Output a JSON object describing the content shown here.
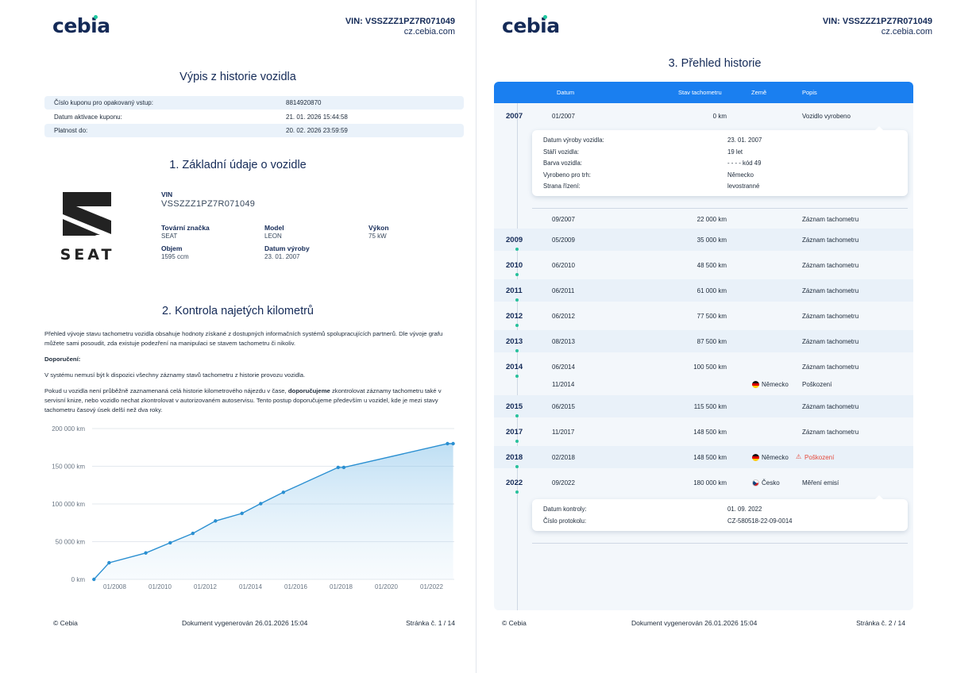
{
  "brand": "cebia",
  "header": {
    "vin_label": "VIN: VSSZZZ1PZ7R071049",
    "site": "cz.cebia.com"
  },
  "page1": {
    "title": "Výpis z historie vozidla",
    "coupon": [
      {
        "label": "Číslo kuponu pro opakovaný vstup:",
        "value": "8814920870"
      },
      {
        "label": "Datum aktivace kuponu:",
        "value": "21. 01. 2026 15:44:58"
      },
      {
        "label": "Platnost do:",
        "value": "20. 02. 2026 23:59:59"
      }
    ],
    "section1_title": "1. Základní údaje o vozidle",
    "vehicle": {
      "logo_text": "SEAT",
      "vin_label": "VIN",
      "vin": "VSSZZZ1PZ7R071049",
      "make_label": "Tovární značka",
      "make": "SEAT",
      "model_label": "Model",
      "model": "LEON",
      "power_label": "Výkon",
      "power": "75 kW",
      "displacement_label": "Objem",
      "displacement": "1595 ccm",
      "production_label": "Datum výroby",
      "production": "23. 01. 2007"
    },
    "section2_title": "2. Kontrola najetých kilometrů",
    "para1": "Přehled vývoje stavu tachometru vozidla obsahuje hodnoty získané z dostupných informačních systémů spolupracujících partnerů. Dle vývoje grafu můžete sami posoudit, zda existuje podezření na manipulaci se stavem tachometru či nikoliv.",
    "recommend_label": "Doporučení:",
    "para2": "V systému nemusí být k dispozici všechny záznamy stavů tachometru z historie provozu vozidla.",
    "para3_a": "Pokud u vozidla není průběžně zaznamenaná celá historie kilometrového nájezdu v čase, ",
    "para3_b": "doporučujeme",
    "para3_c": " zkontrolovat záznamy tachometru také v servisní knize, nebo vozidlo nechat zkontrolovat v autorizovaném autoservisu. Tento postup doporučujeme především u vozidel, kde je mezi stavy tachometru časový úsek delší než dva roky.",
    "footer_left": "© Cebia",
    "footer_mid": "Dokument vygenerován 26.01.2026 15:04",
    "footer_right": "Stránka č. 1 / 14"
  },
  "chart_data": {
    "type": "area",
    "title": "",
    "xlabel": "",
    "ylabel": "",
    "y_ticks": [
      "0 km",
      "50 000 km",
      "100 000 km",
      "150 000 km",
      "200 000 km"
    ],
    "x_ticks": [
      "01/2008",
      "01/2010",
      "01/2012",
      "01/2014",
      "01/2016",
      "01/2018",
      "01/2020",
      "01/2022"
    ],
    "x_tick_years": [
      2008,
      2010,
      2012,
      2014,
      2016,
      2018,
      2020,
      2022
    ],
    "ylim": [
      0,
      200000
    ],
    "xlim": [
      2007.0,
      2023.0
    ],
    "grid": true,
    "color": "#2a8fd1",
    "points": [
      {
        "x": 2007.08,
        "y": 0
      },
      {
        "x": 2007.75,
        "y": 22000
      },
      {
        "x": 2009.37,
        "y": 35000
      },
      {
        "x": 2010.45,
        "y": 48500
      },
      {
        "x": 2011.45,
        "y": 61000
      },
      {
        "x": 2012.45,
        "y": 77500
      },
      {
        "x": 2013.62,
        "y": 87500
      },
      {
        "x": 2014.45,
        "y": 100500
      },
      {
        "x": 2015.45,
        "y": 115500
      },
      {
        "x": 2017.87,
        "y": 148500
      },
      {
        "x": 2018.12,
        "y": 148500
      },
      {
        "x": 2022.7,
        "y": 180000
      },
      {
        "x": 2022.95,
        "y": 180000
      }
    ]
  },
  "page2": {
    "title": "3. Přehled historie",
    "columns": {
      "date": "Datum",
      "odo": "Stav tachometru",
      "country": "Země",
      "desc": "Popis"
    },
    "first_entry": {
      "year": "2007",
      "date": "01/2007",
      "odo": "0 km",
      "desc": "Vozidlo vyrobeno"
    },
    "card1": [
      {
        "label": "Datum výroby vozidla:",
        "value": "23. 01. 2007"
      },
      {
        "label": "Stáří vozidla:",
        "value": "19 let"
      },
      {
        "label": "Barva vozidla:",
        "value": "- - - - kód 49"
      },
      {
        "label": "Vyrobeno pro trh:",
        "value": "Německo"
      },
      {
        "label": "Strana řízení:",
        "value": "levostranné"
      }
    ],
    "rows": [
      {
        "year": "",
        "date": "09/2007",
        "odo": "22 000 km",
        "country": "",
        "desc": "Záznam tachometru"
      },
      {
        "year": "2009",
        "date": "05/2009",
        "odo": "35 000 km",
        "country": "",
        "desc": "Záznam tachometru"
      },
      {
        "year": "2010",
        "date": "06/2010",
        "odo": "48 500 km",
        "country": "",
        "desc": "Záznam tachometru"
      },
      {
        "year": "2011",
        "date": "06/2011",
        "odo": "61 000 km",
        "country": "",
        "desc": "Záznam tachometru"
      },
      {
        "year": "2012",
        "date": "06/2012",
        "odo": "77 500 km",
        "country": "",
        "desc": "Záznam tachometru"
      },
      {
        "year": "2013",
        "date": "08/2013",
        "odo": "87 500 km",
        "country": "",
        "desc": "Záznam tachometru"
      },
      {
        "year": "2014",
        "date": "06/2014",
        "odo": "100 500 km",
        "country": "",
        "desc": "Záznam tachometru"
      },
      {
        "year": "",
        "date": "11/2014",
        "odo": "",
        "country": "Německo",
        "flag": "de",
        "desc": "Poškození"
      },
      {
        "year": "2015",
        "date": "06/2015",
        "odo": "115 500 km",
        "country": "",
        "desc": "Záznam tachometru"
      },
      {
        "year": "2017",
        "date": "11/2017",
        "odo": "148 500 km",
        "country": "",
        "desc": "Záznam tachometru"
      },
      {
        "year": "2018",
        "date": "02/2018",
        "odo": "148 500 km",
        "country": "Německo",
        "flag": "de",
        "desc": "Poškození",
        "warn": true
      },
      {
        "year": "2022",
        "date": "09/2022",
        "odo": "180 000 km",
        "country": "Česko",
        "flag": "cz",
        "desc": "Měření emisí"
      }
    ],
    "card2": [
      {
        "label": "Datum kontroly:",
        "value": "01. 09. 2022"
      },
      {
        "label": "Číslo protokolu:",
        "value": "CZ-580518-22-09-0014"
      }
    ],
    "footer_left": "© Cebia",
    "footer_mid": "Dokument vygenerován 26.01.2026 15:04",
    "footer_right": "Stránka č. 2 / 14"
  }
}
